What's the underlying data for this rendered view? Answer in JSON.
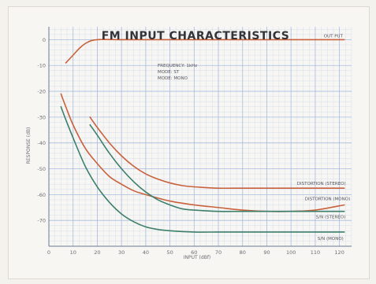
{
  "chart_data": {
    "type": "line",
    "title": "FM INPUT CHARACTERISTICS",
    "xlabel": "INPUT (dBf)",
    "ylabel": "RESPONSE (dB)",
    "x_ticks": [
      0,
      10,
      20,
      30,
      40,
      50,
      60,
      70,
      80,
      90,
      100,
      110,
      120
    ],
    "y_ticks": [
      0,
      -10,
      -20,
      -30,
      -40,
      -50,
      -60,
      -70
    ],
    "xlim": [
      0,
      125
    ],
    "ylim": [
      -80,
      5
    ],
    "grid": true,
    "annotations": [
      "FREQUENCY: 1kHz",
      "MODE: ST",
      "MODE: MONO"
    ],
    "series": [
      {
        "name": "OUT PUT",
        "color": "#c8613c",
        "x": [
          7,
          10,
          13,
          16,
          20,
          30,
          40,
          60,
          80,
          100,
          122
        ],
        "y": [
          -9,
          -6,
          -3,
          -1,
          0,
          0,
          0,
          0,
          0,
          0,
          0
        ]
      },
      {
        "name": "DISTORTION (STEREO)",
        "color": "#c8613c",
        "x": [
          17,
          20,
          25,
          30,
          35,
          40,
          45,
          50,
          55,
          60,
          70,
          80,
          90,
          100,
          110,
          122
        ],
        "y": [
          -30,
          -34,
          -40,
          -45,
          -49,
          -52,
          -54,
          -55.5,
          -56.5,
          -57,
          -57.5,
          -57.5,
          -57.5,
          -57.5,
          -57.5,
          -57.5
        ]
      },
      {
        "name": "DISTORTION (MONO)",
        "color": "#c8613c",
        "x": [
          5,
          7,
          10,
          15,
          20,
          25,
          30,
          35,
          40,
          50,
          60,
          70,
          80,
          90,
          100,
          110,
          122
        ],
        "y": [
          -21,
          -26,
          -33,
          -42,
          -48,
          -53,
          -56,
          -58.5,
          -60,
          -62.5,
          -64,
          -65,
          -66,
          -66.5,
          -66.5,
          -66,
          -64
        ]
      },
      {
        "name": "S/N (STEREO)",
        "color": "#3d7f6a",
        "x": [
          17,
          20,
          25,
          30,
          35,
          40,
          45,
          50,
          55,
          60,
          70,
          80,
          90,
          100,
          110,
          122
        ],
        "y": [
          -33,
          -37,
          -44,
          -50,
          -55,
          -59,
          -62,
          -64,
          -65.5,
          -66,
          -66.5,
          -66.5,
          -66.5,
          -66.5,
          -66.5,
          -66.5
        ]
      },
      {
        "name": "S/N (MONO)",
        "color": "#3d7f6a",
        "x": [
          5,
          7,
          10,
          15,
          20,
          25,
          30,
          35,
          40,
          45,
          50,
          60,
          70,
          80,
          90,
          100,
          110,
          122
        ],
        "y": [
          -26,
          -31,
          -38,
          -49,
          -57,
          -63,
          -67.5,
          -70.5,
          -72.5,
          -73.5,
          -74,
          -74.5,
          -74.5,
          -74.5,
          -74.5,
          -74.5,
          -74.5,
          -74.5
        ]
      }
    ]
  }
}
